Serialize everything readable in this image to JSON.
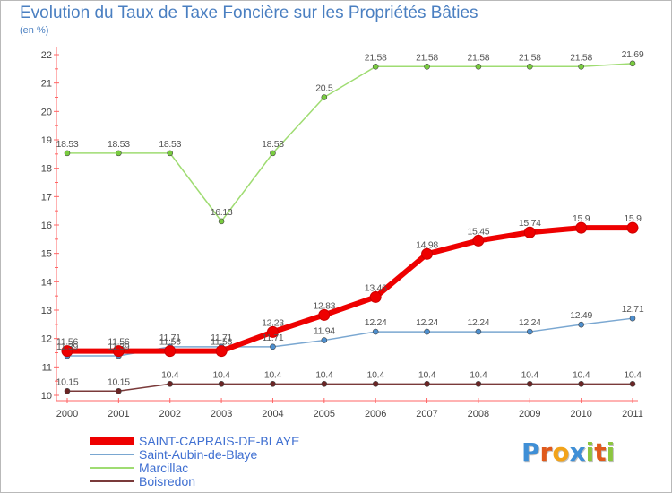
{
  "header": {
    "title": "Evolution du Taux de Taxe Foncière sur les Propriétés Bâties",
    "unit": "(en %)"
  },
  "logo": {
    "text": "Proxiti",
    "letters": [
      "P",
      "r",
      "o",
      "x",
      "i",
      "t",
      "i"
    ],
    "colors": [
      "#3f8fd6",
      "#e05a1c",
      "#f2a31a",
      "#3f8fd6",
      "#8cc63f",
      "#e05a1c",
      "#8cc63f"
    ]
  },
  "chart_data": {
    "type": "line",
    "title": "Evolution du Taux de Taxe Foncière sur les Propriétés Bâties",
    "ylabel": "(en %)",
    "xlabel": "",
    "x": [
      "2000",
      "2001",
      "2002",
      "2003",
      "2004",
      "2005",
      "2006",
      "2007",
      "2008",
      "2009",
      "2010",
      "2011"
    ],
    "ylim": [
      10,
      22
    ],
    "yticks": [
      10,
      11,
      12,
      13,
      14,
      15,
      16,
      17,
      18,
      19,
      20,
      21,
      22
    ],
    "grid": false,
    "legend": "bottom-left",
    "series": [
      {
        "name": "SAINT-CAPRAIS-DE-BLAYE",
        "values": [
          11.56,
          11.56,
          11.56,
          11.56,
          12.23,
          12.83,
          13.46,
          14.98,
          15.45,
          15.74,
          15.9,
          15.9
        ],
        "labels": [
          "11.56",
          "11.56",
          "11.56",
          "11.56",
          "12.23",
          "12.83",
          "13.46",
          "14.98",
          "15.45",
          "15.74",
          "15.9",
          "15.9"
        ],
        "color": "#ee0000",
        "marker": "#ee0000",
        "width": 6
      },
      {
        "name": "Saint-Aubin-de-Blaye",
        "values": [
          11.39,
          11.39,
          11.71,
          11.71,
          11.71,
          11.94,
          12.24,
          12.24,
          12.24,
          12.24,
          12.49,
          12.71
        ],
        "labels": [
          "11.39",
          "11.39",
          "11.71",
          "11.71",
          "11.71",
          "11.94",
          "12.24",
          "12.24",
          "12.24",
          "12.24",
          "12.49",
          "12.71"
        ],
        "color": "#7aa7d1",
        "marker": "#4d8fcf",
        "width": 1.5
      },
      {
        "name": "Marcillac",
        "values": [
          18.53,
          18.53,
          18.53,
          16.13,
          18.53,
          20.5,
          21.58,
          21.58,
          21.58,
          21.58,
          21.58,
          21.69
        ],
        "labels": [
          "18.53",
          "18.53",
          "18.53",
          "16.13",
          "18.53",
          "20.5",
          "21.58",
          "21.58",
          "21.58",
          "21.58",
          "21.58",
          "21.69"
        ],
        "color": "#9fdc72",
        "marker": "#79cc3f",
        "width": 1.5
      },
      {
        "name": "Boisredon",
        "values": [
          10.15,
          10.15,
          10.4,
          10.4,
          10.4,
          10.4,
          10.4,
          10.4,
          10.4,
          10.4,
          10.4,
          10.4
        ],
        "labels": [
          "10.15",
          "10.15",
          "10.4",
          "10.4",
          "10.4",
          "10.4",
          "10.4",
          "10.4",
          "10.4",
          "10.4",
          "10.4",
          "10.4"
        ],
        "color": "#7a3a3a",
        "marker": "#6b2525",
        "width": 1.5
      }
    ]
  }
}
